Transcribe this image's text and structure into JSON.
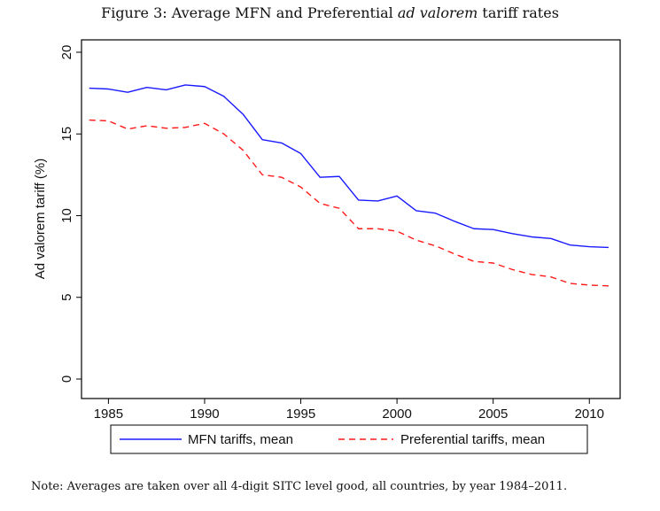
{
  "figure": {
    "title_prefix": "Figure 3: Average MFN and Preferential ",
    "title_italic": "ad valorem",
    "title_suffix": " tariff rates",
    "note": "Note: Averages are taken over all 4-digit SITC level good, all countries, by year 1984–2011."
  },
  "colors": {
    "mfn": "#1a1aff",
    "preferential": "#ff1a1a",
    "axis": "#000000"
  },
  "chart_data": {
    "type": "line",
    "title": "Figure 3: Average MFN and Preferential ad valorem tariff rates",
    "xlabel": "",
    "ylabel": "Ad valorem tariff (%)",
    "xlim": [
      1983.6,
      2011.6
    ],
    "ylim": [
      0,
      20
    ],
    "xticks": [
      1985,
      1990,
      1995,
      2000,
      2005,
      2010
    ],
    "yticks": [
      0,
      5,
      10,
      15,
      20
    ],
    "legend_position": "bottom",
    "x": [
      1984,
      1985,
      1986,
      1987,
      1988,
      1989,
      1990,
      1991,
      1992,
      1993,
      1994,
      1995,
      1996,
      1997,
      1998,
      1999,
      2000,
      2001,
      2002,
      2003,
      2004,
      2005,
      2006,
      2007,
      2008,
      2009,
      2010,
      2011
    ],
    "series": [
      {
        "name": "MFN tariffs, mean",
        "style": "solid",
        "values": [
          17.8,
          17.75,
          17.55,
          17.85,
          17.7,
          18.0,
          17.9,
          17.3,
          16.2,
          14.65,
          14.45,
          13.8,
          12.35,
          12.4,
          10.95,
          10.9,
          11.2,
          10.3,
          10.15,
          9.65,
          9.2,
          9.15,
          8.9,
          8.7,
          8.6,
          8.2,
          8.1,
          8.05
        ]
      },
      {
        "name": "Preferential tariffs, mean",
        "style": "dashed",
        "values": [
          15.85,
          15.8,
          15.3,
          15.5,
          15.35,
          15.4,
          15.65,
          15.0,
          14.0,
          12.5,
          12.35,
          11.75,
          10.75,
          10.45,
          9.2,
          9.2,
          9.05,
          8.5,
          8.15,
          7.65,
          7.2,
          7.1,
          6.7,
          6.4,
          6.25,
          5.85,
          5.75,
          5.7
        ]
      }
    ]
  }
}
